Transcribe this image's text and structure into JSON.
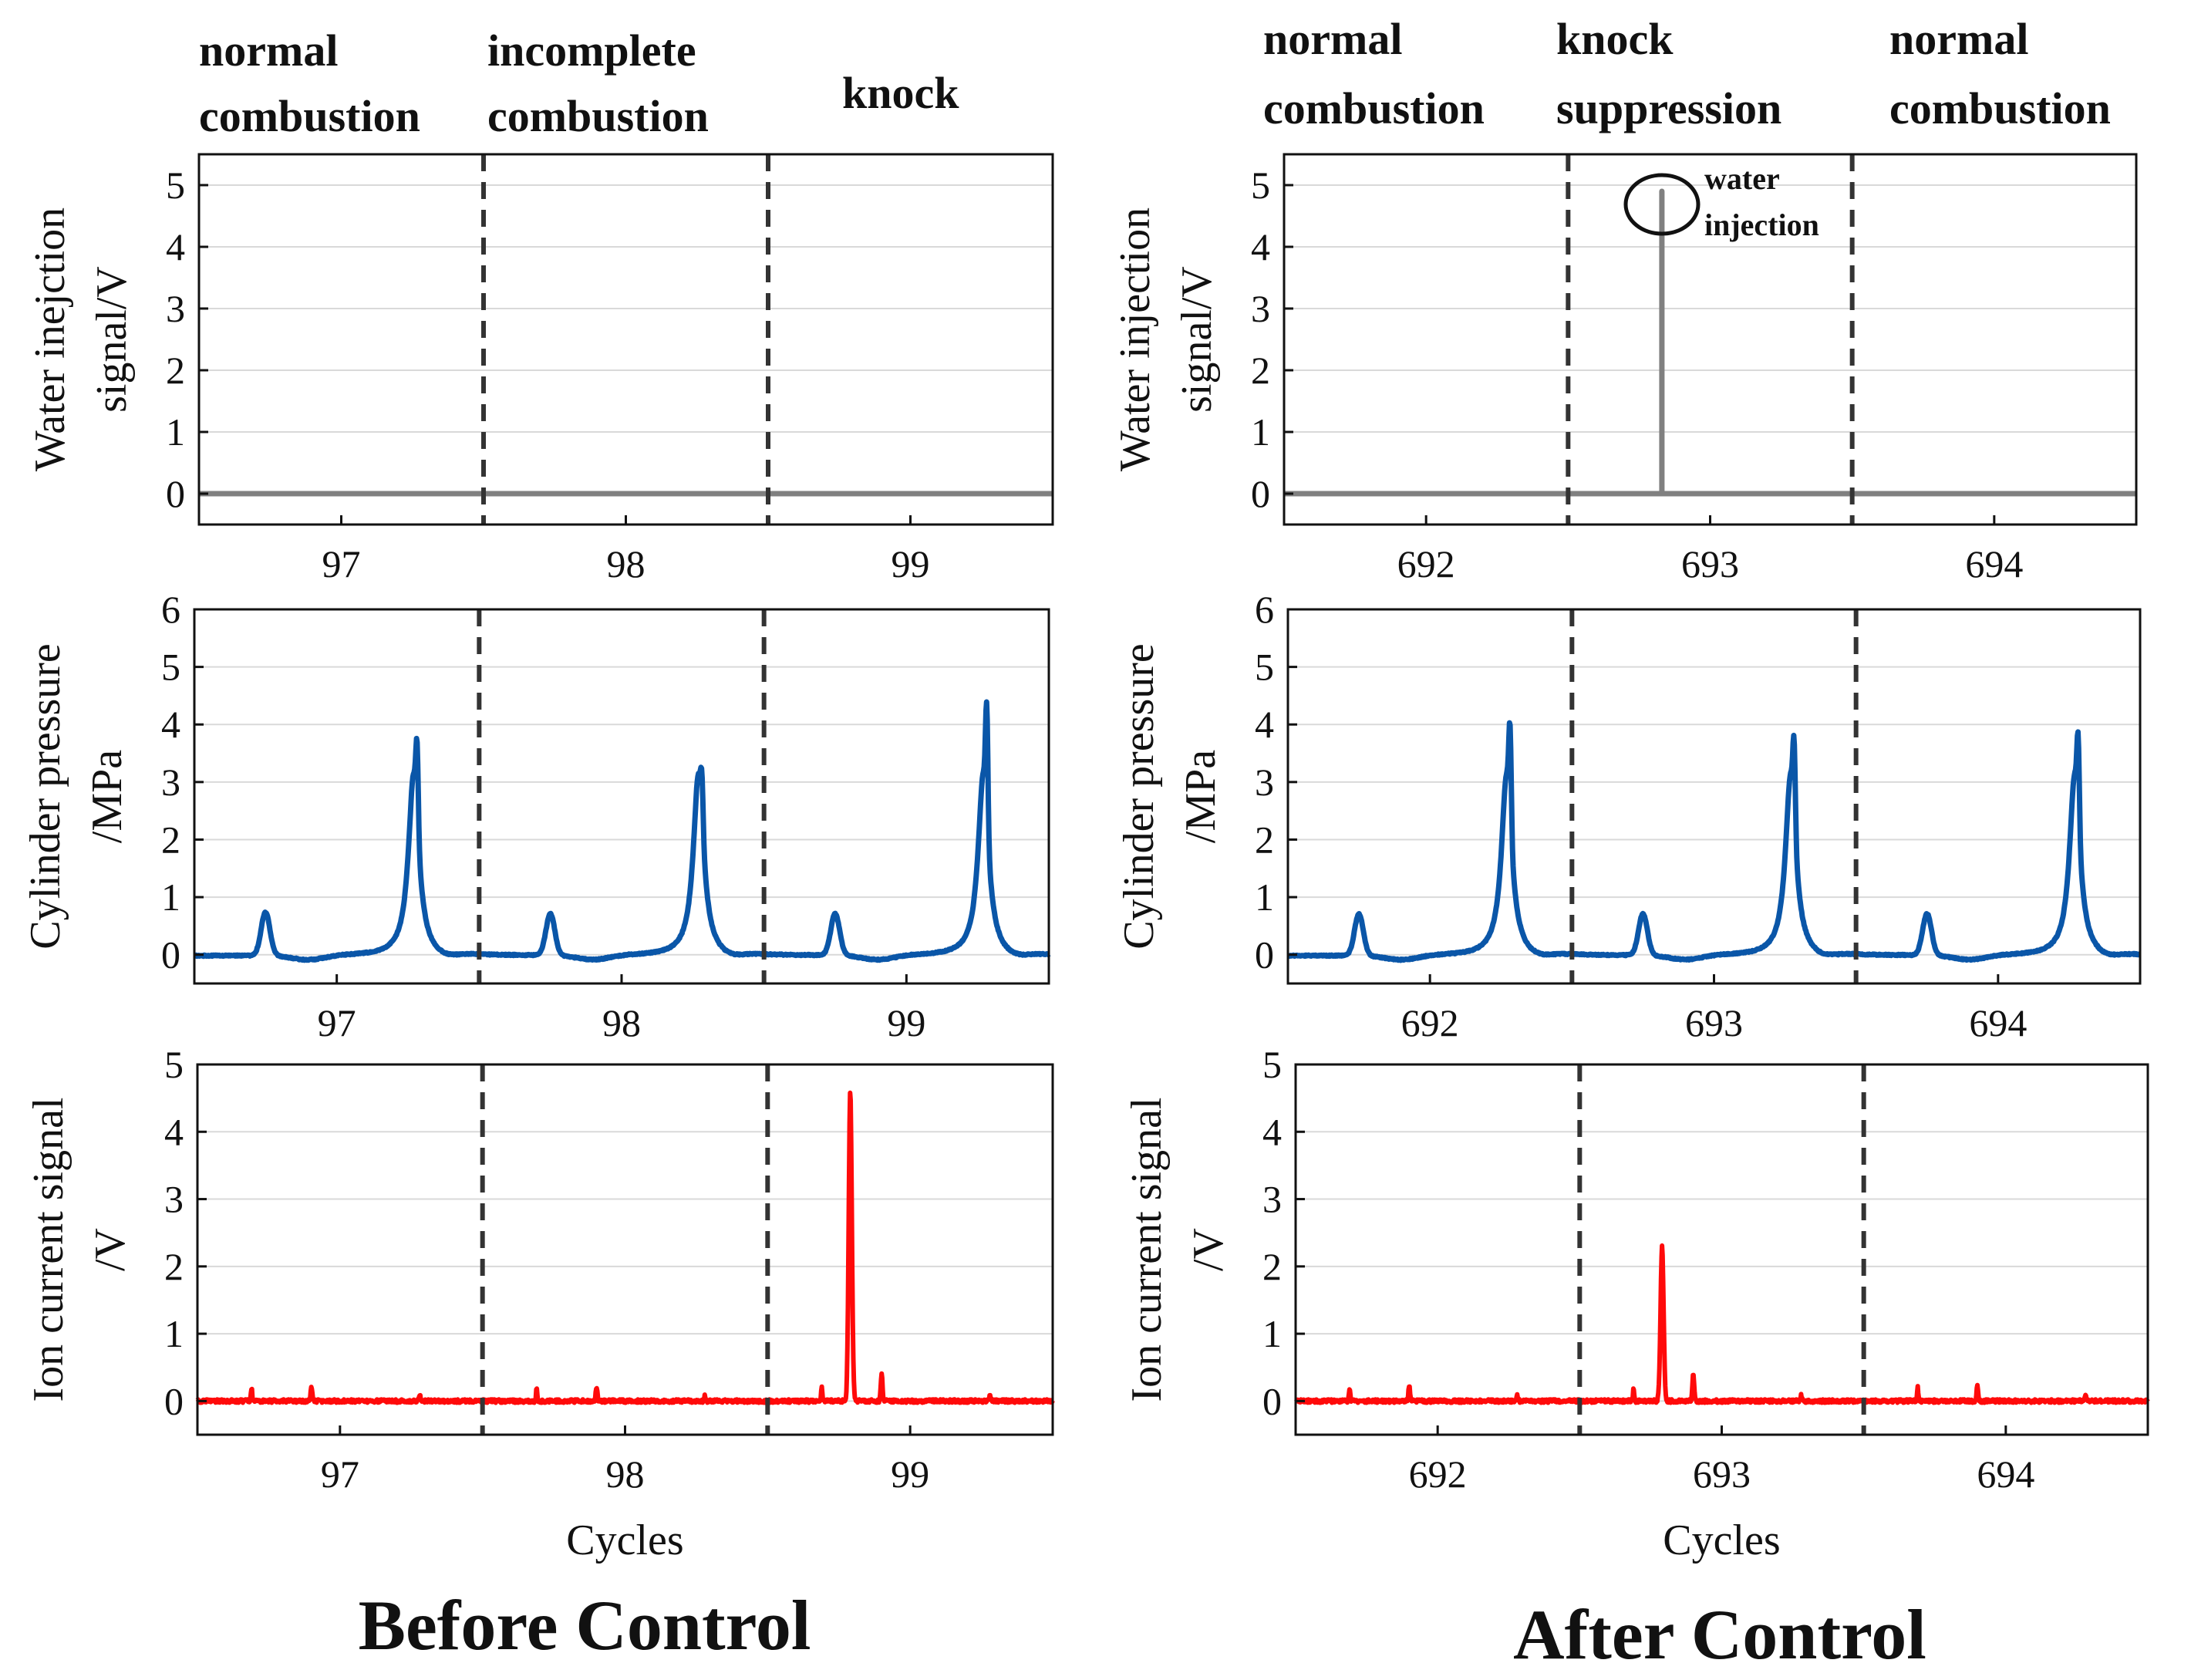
{
  "captions": {
    "left": "Before Control",
    "right": "After Control"
  },
  "phases": {
    "left": [
      {
        "line1": "normal",
        "line2": "combustion"
      },
      {
        "line1": "incomplete",
        "line2": "combustion"
      },
      {
        "line1": "",
        "line2": "knock"
      }
    ],
    "right": [
      {
        "line1": "normal",
        "line2": "combustion"
      },
      {
        "line1": "knock",
        "line2": "suppression"
      },
      {
        "line1": "normal",
        "line2": "combustion"
      }
    ]
  },
  "annotation": {
    "line1": "water",
    "line2": "injection"
  },
  "colors": {
    "water": "#808080",
    "pressure": "#0a56a8",
    "ion": "#ff0a0a",
    "divider": "#333333",
    "grid": "#d9d9d9"
  },
  "chart_data": [
    {
      "id": "before-water",
      "type": "line",
      "xlabel": "",
      "ylabel": [
        "Water inejction",
        "signal/V"
      ],
      "xlim": [
        96.5,
        99.5
      ],
      "ylim": [
        -0.5,
        5.5
      ],
      "yticks": [
        0,
        1,
        2,
        3,
        4,
        5
      ],
      "xticks": [
        97,
        98,
        99
      ],
      "dividers": [
        97.5,
        98.5
      ],
      "grid": "horizontal",
      "series": [
        {
          "kind": "water",
          "points": [
            [
              96.5,
              0
            ],
            [
              99.5,
              0
            ]
          ]
        }
      ]
    },
    {
      "id": "before-pressure",
      "type": "line",
      "xlabel": "",
      "ylabel": [
        "Cylinder pressure",
        "/MPa"
      ],
      "xlim": [
        96.5,
        99.5
      ],
      "ylim": [
        -0.5,
        6
      ],
      "yticks": [
        0,
        1,
        2,
        3,
        4,
        5,
        6
      ],
      "xticks": [
        97,
        98,
        99
      ],
      "dividers": [
        97.5,
        98.5
      ],
      "grid": "horizontal",
      "series": [
        {
          "kind": "pressure",
          "cycles": [
            {
              "center": 97,
              "small": 0.75,
              "peak": 4.5
            },
            {
              "center": 98,
              "small": 0.72,
              "peak": 3.95
            },
            {
              "center": 99,
              "small": 0.72,
              "peak": 5.15
            }
          ]
        }
      ]
    },
    {
      "id": "before-ion",
      "type": "line",
      "xlabel": "Cycles",
      "ylabel": [
        "Ion current signal",
        "/V"
      ],
      "xlim": [
        96.5,
        99.5
      ],
      "ylim": [
        -0.5,
        5
      ],
      "yticks": [
        0,
        1,
        2,
        3,
        4,
        5
      ],
      "xticks": [
        97,
        98,
        99
      ],
      "dividers": [
        97.5,
        98.5
      ],
      "grid": "horizontal",
      "series": [
        {
          "kind": "ion",
          "cycles": [
            {
              "center": 97,
              "spike": 0
            },
            {
              "center": 98,
              "spike": 0
            },
            {
              "center": 99,
              "spike": 4.6
            }
          ]
        }
      ]
    },
    {
      "id": "after-water",
      "type": "line",
      "xlabel": "",
      "ylabel": [
        "Water injection",
        "signal/V"
      ],
      "xlim": [
        691.5,
        694.5
      ],
      "ylim": [
        -0.5,
        5.5
      ],
      "yticks": [
        0,
        1,
        2,
        3,
        4,
        5
      ],
      "xticks": [
        692,
        693,
        694
      ],
      "dividers": [
        692.5,
        693.5
      ],
      "grid": "horizontal",
      "series": [
        {
          "kind": "water",
          "points": [
            [
              691.5,
              0
            ],
            [
              692.83,
              0
            ],
            [
              692.83,
              4.9
            ],
            [
              692.83,
              0
            ],
            [
              694.5,
              0
            ]
          ]
        }
      ]
    },
    {
      "id": "after-pressure",
      "type": "line",
      "xlabel": "",
      "ylabel": [
        "Cylinder pressure",
        "/MPa"
      ],
      "xlim": [
        691.5,
        694.5
      ],
      "ylim": [
        -0.5,
        6
      ],
      "yticks": [
        0,
        1,
        2,
        3,
        4,
        5,
        6
      ],
      "xticks": [
        692,
        693,
        694
      ],
      "dividers": [
        692.5,
        693.5
      ],
      "grid": "horizontal",
      "series": [
        {
          "kind": "pressure",
          "cycles": [
            {
              "center": 692,
              "small": 0.72,
              "peak": 4.8
            },
            {
              "center": 693,
              "small": 0.72,
              "peak": 4.55
            },
            {
              "center": 694,
              "small": 0.72,
              "peak": 4.62
            }
          ]
        }
      ]
    },
    {
      "id": "after-ion",
      "type": "line",
      "xlabel": "Cycles",
      "ylabel": [
        "Ion current signal",
        "/V"
      ],
      "xlim": [
        691.5,
        694.5
      ],
      "ylim": [
        -0.5,
        5
      ],
      "yticks": [
        0,
        1,
        2,
        3,
        4,
        5
      ],
      "xticks": [
        692,
        693,
        694
      ],
      "dividers": [
        692.5,
        693.5
      ],
      "grid": "horizontal",
      "series": [
        {
          "kind": "ion",
          "cycles": [
            {
              "center": 692,
              "spike": 0
            },
            {
              "center": 693,
              "spike": 2.3
            },
            {
              "center": 694,
              "spike": 0
            }
          ]
        }
      ]
    }
  ]
}
